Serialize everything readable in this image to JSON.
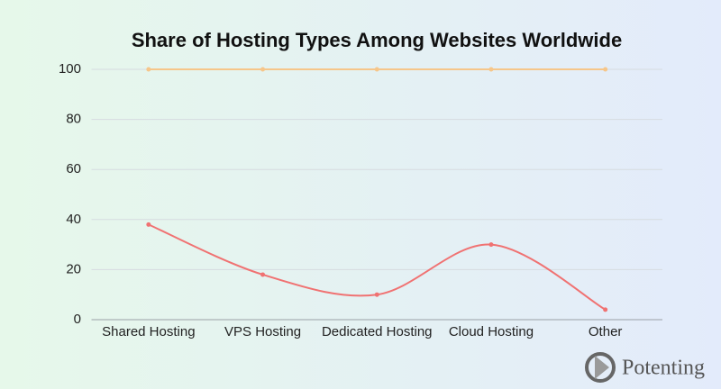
{
  "chart_data": {
    "type": "line",
    "title": "Share of Hosting Types Among Websites Worldwide",
    "categories": [
      "Shared Hosting",
      "VPS Hosting",
      "Dedicated Hosting",
      "Cloud Hosting",
      "Other"
    ],
    "series": [
      {
        "color": "#f07272",
        "values": [
          38,
          18,
          10,
          30,
          4
        ]
      },
      {
        "color": "#f6c68a",
        "values": [
          100,
          100,
          100,
          100,
          100
        ]
      }
    ],
    "ylim": [
      0,
      100
    ],
    "yticks": [
      0,
      20,
      40,
      60,
      80,
      100
    ],
    "grid": true,
    "smooth": true
  },
  "watermark": "Potenting"
}
